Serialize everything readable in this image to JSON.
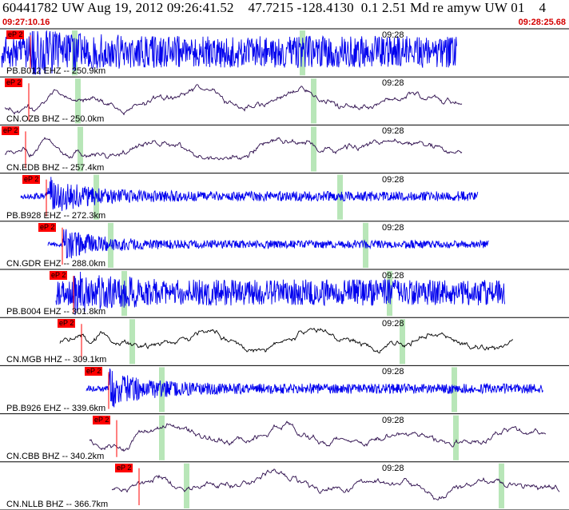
{
  "header": {
    "title": "60441782 UW Aug 19, 2012 09:26:41.52    47.7215 -128.4130  0.1 2.51 Md re amyw UW 01    4",
    "start_time": "09:27:10.16",
    "end_time": "09:28:25.68"
  },
  "colors": {
    "blue_trace": "#0000ee",
    "dark_trace": "#2a0a4a",
    "black_trace": "#000000",
    "pick_red": "#ff0000",
    "green_band": "#b8e6b8"
  },
  "traces": [
    {
      "label": "PB.B012 EHZ -- 250.9km",
      "tick": "09:28",
      "pick": "eP 2",
      "color": "blue_trace",
      "energy": 0.9,
      "style": "noisy"
    },
    {
      "label": "CN.OZB BHZ -- 250.0km",
      "tick": "09:28",
      "pick": "eP 2",
      "color": "dark_trace",
      "energy": 0.45,
      "style": "smooth"
    },
    {
      "label": "CN.EDB BHZ -- 257.4km",
      "tick": "09:28",
      "pick": "eP 2",
      "color": "dark_trace",
      "energy": 0.45,
      "style": "smooth"
    },
    {
      "label": "PB.B928 EHZ -- 272.3km",
      "tick": "09:28",
      "pick": "eP 2",
      "color": "blue_trace",
      "energy": 0.35,
      "style": "burst"
    },
    {
      "label": "CN.GDR EHZ -- 288.0km",
      "tick": "09:28",
      "pick": "eP 2",
      "color": "blue_trace",
      "energy": 0.25,
      "style": "burst"
    },
    {
      "label": "PB.B004 EHZ -- 301.8km",
      "tick": "09:28",
      "pick": "eP 2",
      "color": "blue_trace",
      "energy": 0.7,
      "style": "noisy"
    },
    {
      "label": "CN.MGB HHZ -- 309.1km",
      "tick": "09:28",
      "pick": "eP 2",
      "color": "black_trace",
      "energy": 0.45,
      "style": "smooth"
    },
    {
      "label": "PB.B926 EHZ -- 339.6km",
      "tick": "09:28",
      "pick": "eP 2",
      "color": "blue_trace",
      "energy": 0.35,
      "style": "burst"
    },
    {
      "label": "CN.CBB BHZ -- 340.2km",
      "tick": "09:28",
      "pick": "eP 2",
      "color": "dark_trace",
      "energy": 0.4,
      "style": "smooth"
    },
    {
      "label": "CN.NLLB BHZ -- 366.7km",
      "tick": "09:28",
      "pick": "eP 2",
      "color": "dark_trace",
      "energy": 0.45,
      "style": "smooth"
    }
  ]
}
